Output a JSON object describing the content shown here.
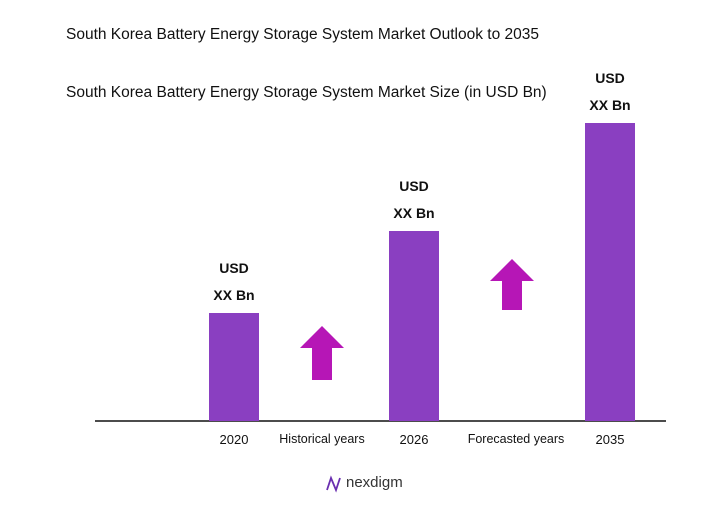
{
  "chart_data": {
    "type": "bar",
    "title": "South Korea Battery Energy Storage System Market Outlook to 2035",
    "subtitle": "South Korea Battery Energy Storage System Market Size (in USD Bn)",
    "categories": [
      "2020",
      "2026",
      "2035"
    ],
    "values": [
      108,
      190,
      298
    ],
    "value_labels": [
      "USD\nXX Bn",
      "USD\nXX Bn",
      "USD\nXX Bn"
    ],
    "color": "#8a3fc1",
    "ylim": [
      0,
      300
    ],
    "annotations": [
      "Historical years",
      "Forecasted years"
    ],
    "arrow_color": "#b616b6",
    "brand": "nexdigm"
  }
}
